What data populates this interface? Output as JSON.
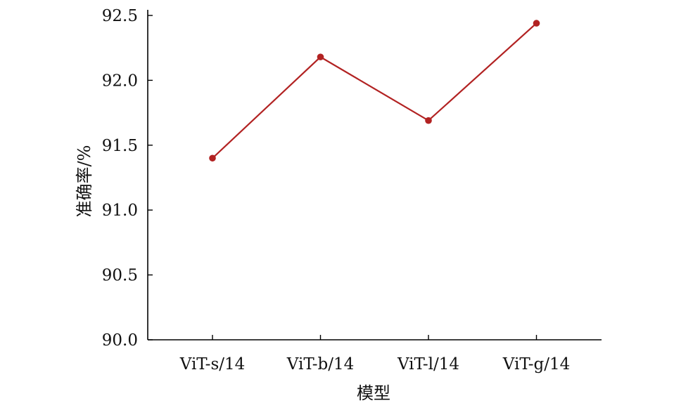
{
  "chart_data": {
    "type": "line",
    "categories": [
      "ViT-s/14",
      "ViT-b/14",
      "ViT-l/14",
      "ViT-g/14"
    ],
    "series": [
      {
        "values": [
          91.4,
          92.18,
          91.69,
          92.44
        ],
        "color": "#b22222"
      }
    ],
    "xlabel": "模型",
    "ylabel": "准确率/%",
    "ylim": [
      90.0,
      92.5
    ],
    "yticks": [
      "90.0",
      "90.5",
      "91.0",
      "91.5",
      "92.0",
      "92.5"
    ],
    "grid": false,
    "legend": "none"
  }
}
